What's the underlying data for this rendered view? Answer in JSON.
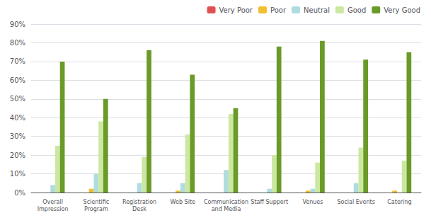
{
  "chart_data": {
    "type": "bar",
    "categories": [
      "Overall\nImpression",
      "Scientific\nProgram",
      "Registration\nDesk",
      "Web Site",
      "Communication\nand Media",
      "Staff Support",
      "Venues",
      "Social Events",
      "Catering"
    ],
    "series": [
      {
        "name": "Very Poor",
        "color": "#e05252",
        "values": [
          0,
          0,
          0,
          0,
          0,
          0,
          0,
          0,
          0
        ]
      },
      {
        "name": "Poor",
        "color": "#f0c030",
        "values": [
          0,
          2,
          0,
          1,
          0,
          0,
          1,
          0,
          1
        ]
      },
      {
        "name": "Neutral",
        "color": "#b0dce0",
        "values": [
          4,
          10,
          5,
          5,
          12,
          2,
          2,
          5,
          0
        ]
      },
      {
        "name": "Good",
        "color": "#cce8a0",
        "values": [
          25,
          38,
          19,
          31,
          42,
          20,
          16,
          24,
          17
        ]
      },
      {
        "name": "Very Good",
        "color": "#6a9a28",
        "values": [
          70,
          50,
          76,
          63,
          45,
          78,
          81,
          71,
          75
        ]
      }
    ],
    "ylim": [
      0,
      90
    ],
    "yticks": [
      {
        "value": 0,
        "label": "0%"
      },
      {
        "value": 10,
        "label": "10%"
      },
      {
        "value": 20,
        "label": "20%"
      },
      {
        "value": 30,
        "label": "30%"
      },
      {
        "value": 40,
        "label": "40%"
      },
      {
        "value": 50,
        "label": "50%"
      },
      {
        "value": 60,
        "label": "60%"
      },
      {
        "value": 70,
        "label": "70%"
      },
      {
        "value": 80,
        "label": "80%"
      },
      {
        "value": 90,
        "label": "90%"
      }
    ],
    "grid": true,
    "legend": "upper right"
  }
}
